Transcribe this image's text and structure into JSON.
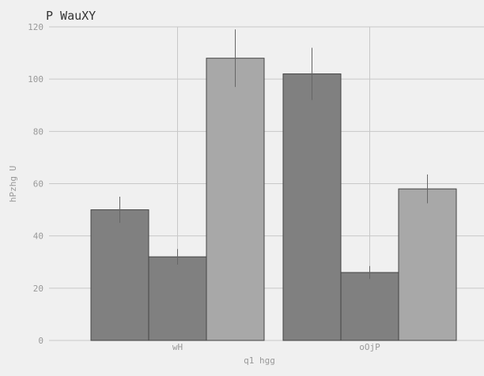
{
  "chart_data": {
    "type": "bar",
    "title": "P WauXY",
    "xlabel": "q1 hgg",
    "ylabel": "hPzhg U",
    "categories": [
      "wH",
      "oOjP"
    ],
    "series": [
      {
        "values": [
          50,
          102
        ],
        "errors": [
          5,
          10
        ],
        "color": "#808080"
      },
      {
        "values": [
          32,
          26
        ],
        "errors": [
          3,
          2.5
        ],
        "color": "#808080"
      },
      {
        "values": [
          108,
          58
        ],
        "errors": [
          11,
          5.5
        ],
        "color": "#a8a8a8"
      }
    ],
    "ylim": [
      0,
      120
    ],
    "yticks": [
      0,
      20,
      40,
      60,
      80,
      100,
      120
    ],
    "grid": true,
    "colors": {
      "background": "#f0f0f0",
      "grid": "#c8c8c8",
      "bar_edge": "#444444",
      "error_bar": "#666666"
    }
  }
}
